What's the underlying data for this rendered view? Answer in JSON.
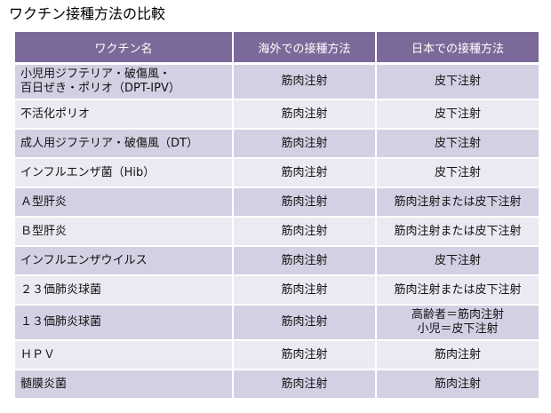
{
  "title": "ワクチン接種方法の比較",
  "table": {
    "headers": [
      "ワクチン名",
      "海外での接種方法",
      "日本での接種方法"
    ],
    "rows": [
      {
        "name": [
          "小児用ジフテリア・破傷風・",
          "百日ぜき・ポリオ（DPT-IPV）"
        ],
        "overseas": [
          "筋肉注射"
        ],
        "japan": [
          "皮下注射"
        ]
      },
      {
        "name": [
          "不活化ポリオ"
        ],
        "overseas": [
          "筋肉注射"
        ],
        "japan": [
          "皮下注射"
        ]
      },
      {
        "name": [
          "成人用ジフテリア・破傷風（DT）"
        ],
        "overseas": [
          "筋肉注射"
        ],
        "japan": [
          "皮下注射"
        ]
      },
      {
        "name": [
          "インフルエンザ菌（Hib）"
        ],
        "overseas": [
          "筋肉注射"
        ],
        "japan": [
          "皮下注射"
        ]
      },
      {
        "name": [
          "Ａ型肝炎"
        ],
        "overseas": [
          "筋肉注射"
        ],
        "japan": [
          "筋肉注射または皮下注射"
        ]
      },
      {
        "name": [
          "Ｂ型肝炎"
        ],
        "overseas": [
          "筋肉注射"
        ],
        "japan": [
          "筋肉注射または皮下注射"
        ]
      },
      {
        "name": [
          "インフルエンザウイルス"
        ],
        "overseas": [
          "筋肉注射"
        ],
        "japan": [
          "皮下注射"
        ]
      },
      {
        "name": [
          "２３価肺炎球菌"
        ],
        "overseas": [
          "筋肉注射"
        ],
        "japan": [
          "筋肉注射または皮下注射"
        ]
      },
      {
        "name": [
          "１３価肺炎球菌"
        ],
        "overseas": [
          "筋肉注射"
        ],
        "japan": [
          "高齢者＝筋肉注射",
          "小児＝皮下注射"
        ]
      },
      {
        "name": [
          "ＨＰＶ"
        ],
        "overseas": [
          "筋肉注射"
        ],
        "japan": [
          "筋肉注射"
        ]
      },
      {
        "name": [
          "髄膜炎菌"
        ],
        "overseas": [
          "筋肉注射"
        ],
        "japan": [
          "筋肉注射"
        ]
      }
    ]
  }
}
